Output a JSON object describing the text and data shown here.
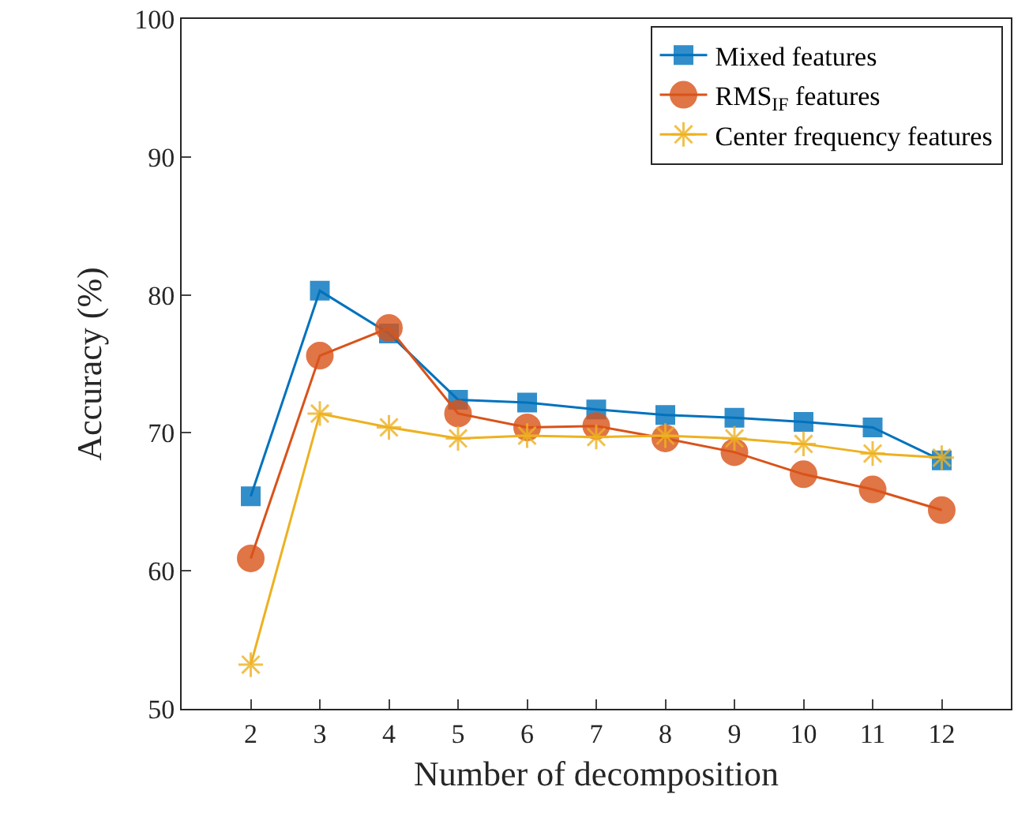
{
  "chart_data": {
    "type": "line",
    "xlabel": "Number of decomposition",
    "ylabel": "Accuracy (%)",
    "x": [
      2,
      3,
      4,
      5,
      6,
      7,
      8,
      9,
      10,
      11,
      12
    ],
    "xlim": [
      1,
      13
    ],
    "xticks": [
      2,
      3,
      4,
      5,
      6,
      7,
      8,
      9,
      10,
      11,
      12
    ],
    "ylim": [
      50,
      100
    ],
    "yticks": [
      50,
      60,
      70,
      80,
      90,
      100
    ],
    "grid": false,
    "legend": "top right",
    "series": [
      {
        "name": "Mixed features",
        "color": "#0072bd",
        "marker": "square",
        "values": [
          65.4,
          80.3,
          77.2,
          72.4,
          72.2,
          71.7,
          71.3,
          71.1,
          70.8,
          70.4,
          68.0
        ]
      },
      {
        "name": "RMS$_{IF}$ features",
        "color": "#d95319",
        "marker": "circle",
        "values": [
          60.9,
          75.6,
          77.6,
          71.4,
          70.4,
          70.5,
          69.6,
          68.6,
          67.0,
          65.9,
          64.4
        ]
      },
      {
        "name": "Center frequency features",
        "color": "#edb120",
        "marker": "cross",
        "values": [
          53.2,
          71.4,
          70.4,
          69.6,
          69.8,
          69.7,
          69.8,
          69.6,
          69.2,
          68.5,
          68.2
        ]
      }
    ]
  }
}
